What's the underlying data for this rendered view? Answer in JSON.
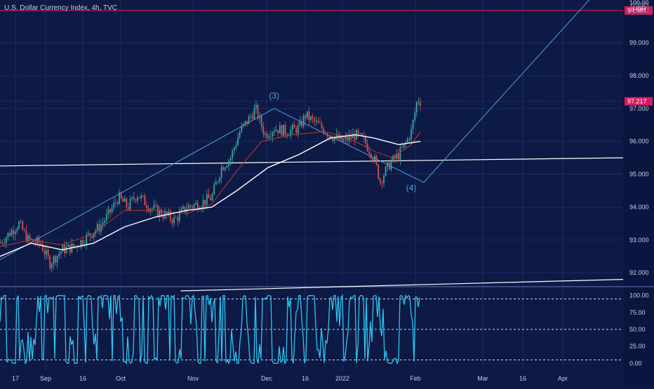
{
  "header": {
    "title": "U.S. Dollar Currency Index, 4h, TVC",
    "currency_badge": "USD",
    "top_price_partial": "100.00"
  },
  "colors": {
    "background": "#0d1a45",
    "candle_up": "#3ba6a0",
    "candle_down": "#d9534f",
    "ma_short": "#c0392b",
    "ma_long": "#ffffff",
    "wave_lines": "#4aa3d9",
    "horizontal_level": "#d81b60",
    "oscillator": "#2ec5f0"
  },
  "chart_data": [
    {
      "type": "candlestick",
      "name": "main-price",
      "x_labels": [
        "17",
        "Sep",
        "16",
        "Oct",
        "Nov",
        "Dec",
        "16",
        "2022",
        "Feb",
        "Mar",
        "16",
        "Apr"
      ],
      "y_ticks": [
        "92.000",
        "93.000",
        "94.000",
        "95.000",
        "96.000",
        "97.000",
        "98.000",
        "99.000"
      ],
      "ylim": [
        91.6,
        100.3
      ],
      "price_tags": [
        {
          "label": "99.981",
          "value": 99.981,
          "color": "#d81b60"
        },
        {
          "label": "97.217",
          "value": 97.217,
          "color": "#d81b60"
        }
      ],
      "horizontal_level": 99.981,
      "last_price": 97.217,
      "price_path": [
        [
          0,
          92.9
        ],
        [
          0.03,
          93.5
        ],
        [
          0.045,
          93.0
        ],
        [
          0.065,
          92.9
        ],
        [
          0.08,
          92.3
        ],
        [
          0.1,
          92.7
        ],
        [
          0.12,
          92.8
        ],
        [
          0.14,
          93.1
        ],
        [
          0.16,
          93.4
        ],
        [
          0.175,
          93.8
        ],
        [
          0.19,
          94.3
        ],
        [
          0.205,
          94.0
        ],
        [
          0.22,
          94.4
        ],
        [
          0.24,
          94.0
        ],
        [
          0.26,
          93.8
        ],
        [
          0.28,
          93.6
        ],
        [
          0.3,
          94.0
        ],
        [
          0.32,
          94.1
        ],
        [
          0.34,
          94.3
        ],
        [
          0.355,
          95.2
        ],
        [
          0.37,
          95.5
        ],
        [
          0.385,
          96.3
        ],
        [
          0.4,
          96.7
        ],
        [
          0.41,
          97.0
        ],
        [
          0.425,
          96.2
        ],
        [
          0.44,
          96.4
        ],
        [
          0.46,
          96.3
        ],
        [
          0.48,
          96.4
        ],
        [
          0.49,
          96.8
        ],
        [
          0.51,
          96.5
        ],
        [
          0.53,
          96.2
        ],
        [
          0.55,
          96.0
        ],
        [
          0.57,
          96.2
        ],
        [
          0.585,
          96.0
        ],
        [
          0.6,
          95.5
        ],
        [
          0.61,
          94.8
        ],
        [
          0.625,
          95.3
        ],
        [
          0.64,
          95.6
        ],
        [
          0.65,
          95.9
        ],
        [
          0.66,
          96.3
        ],
        [
          0.67,
          97.3
        ],
        [
          0.675,
          97.217
        ]
      ],
      "ma_short": [
        [
          0,
          92.8
        ],
        [
          0.05,
          93.0
        ],
        [
          0.1,
          92.85
        ],
        [
          0.15,
          93.2
        ],
        [
          0.2,
          93.9
        ],
        [
          0.25,
          93.9
        ],
        [
          0.3,
          93.8
        ],
        [
          0.34,
          94.1
        ],
        [
          0.38,
          95.1
        ],
        [
          0.42,
          96.0
        ],
        [
          0.47,
          96.2
        ],
        [
          0.52,
          96.3
        ],
        [
          0.56,
          96.1
        ],
        [
          0.6,
          95.7
        ],
        [
          0.63,
          95.5
        ],
        [
          0.66,
          95.9
        ],
        [
          0.675,
          96.3
        ]
      ],
      "ma_long": [
        [
          0,
          92.5
        ],
        [
          0.05,
          92.9
        ],
        [
          0.1,
          92.7
        ],
        [
          0.15,
          92.9
        ],
        [
          0.2,
          93.4
        ],
        [
          0.25,
          93.7
        ],
        [
          0.3,
          93.9
        ],
        [
          0.34,
          94.0
        ],
        [
          0.38,
          94.5
        ],
        [
          0.43,
          95.2
        ],
        [
          0.48,
          95.6
        ],
        [
          0.53,
          96.1
        ],
        [
          0.57,
          96.2
        ],
        [
          0.6,
          96.1
        ],
        [
          0.64,
          95.9
        ],
        [
          0.675,
          96.0
        ]
      ],
      "wave_path": [
        [
          0,
          92.4
        ],
        [
          0.44,
          97.0
        ],
        [
          0.68,
          94.75
        ],
        [
          0.955,
          100.5
        ]
      ],
      "wave_labels": [
        {
          "text": "(3)",
          "x": 0.44,
          "y": 97.3
        },
        {
          "text": "(4)",
          "x": 0.66,
          "y": 94.5
        }
      ],
      "trendlines": [
        {
          "from": [
            0,
            95.25
          ],
          "to": [
            1,
            95.5
          ]
        },
        {
          "from": [
            0.29,
            91.45
          ],
          "to": [
            1,
            91.8
          ]
        }
      ]
    },
    {
      "type": "line",
      "name": "oscillator",
      "y_ticks": [
        "0.00",
        "25.00",
        "50.00",
        "75.00",
        "100.00"
      ],
      "ylim": [
        -10,
        110
      ],
      "levels": [
        5,
        50,
        95
      ],
      "x_end": 0.675
    }
  ]
}
